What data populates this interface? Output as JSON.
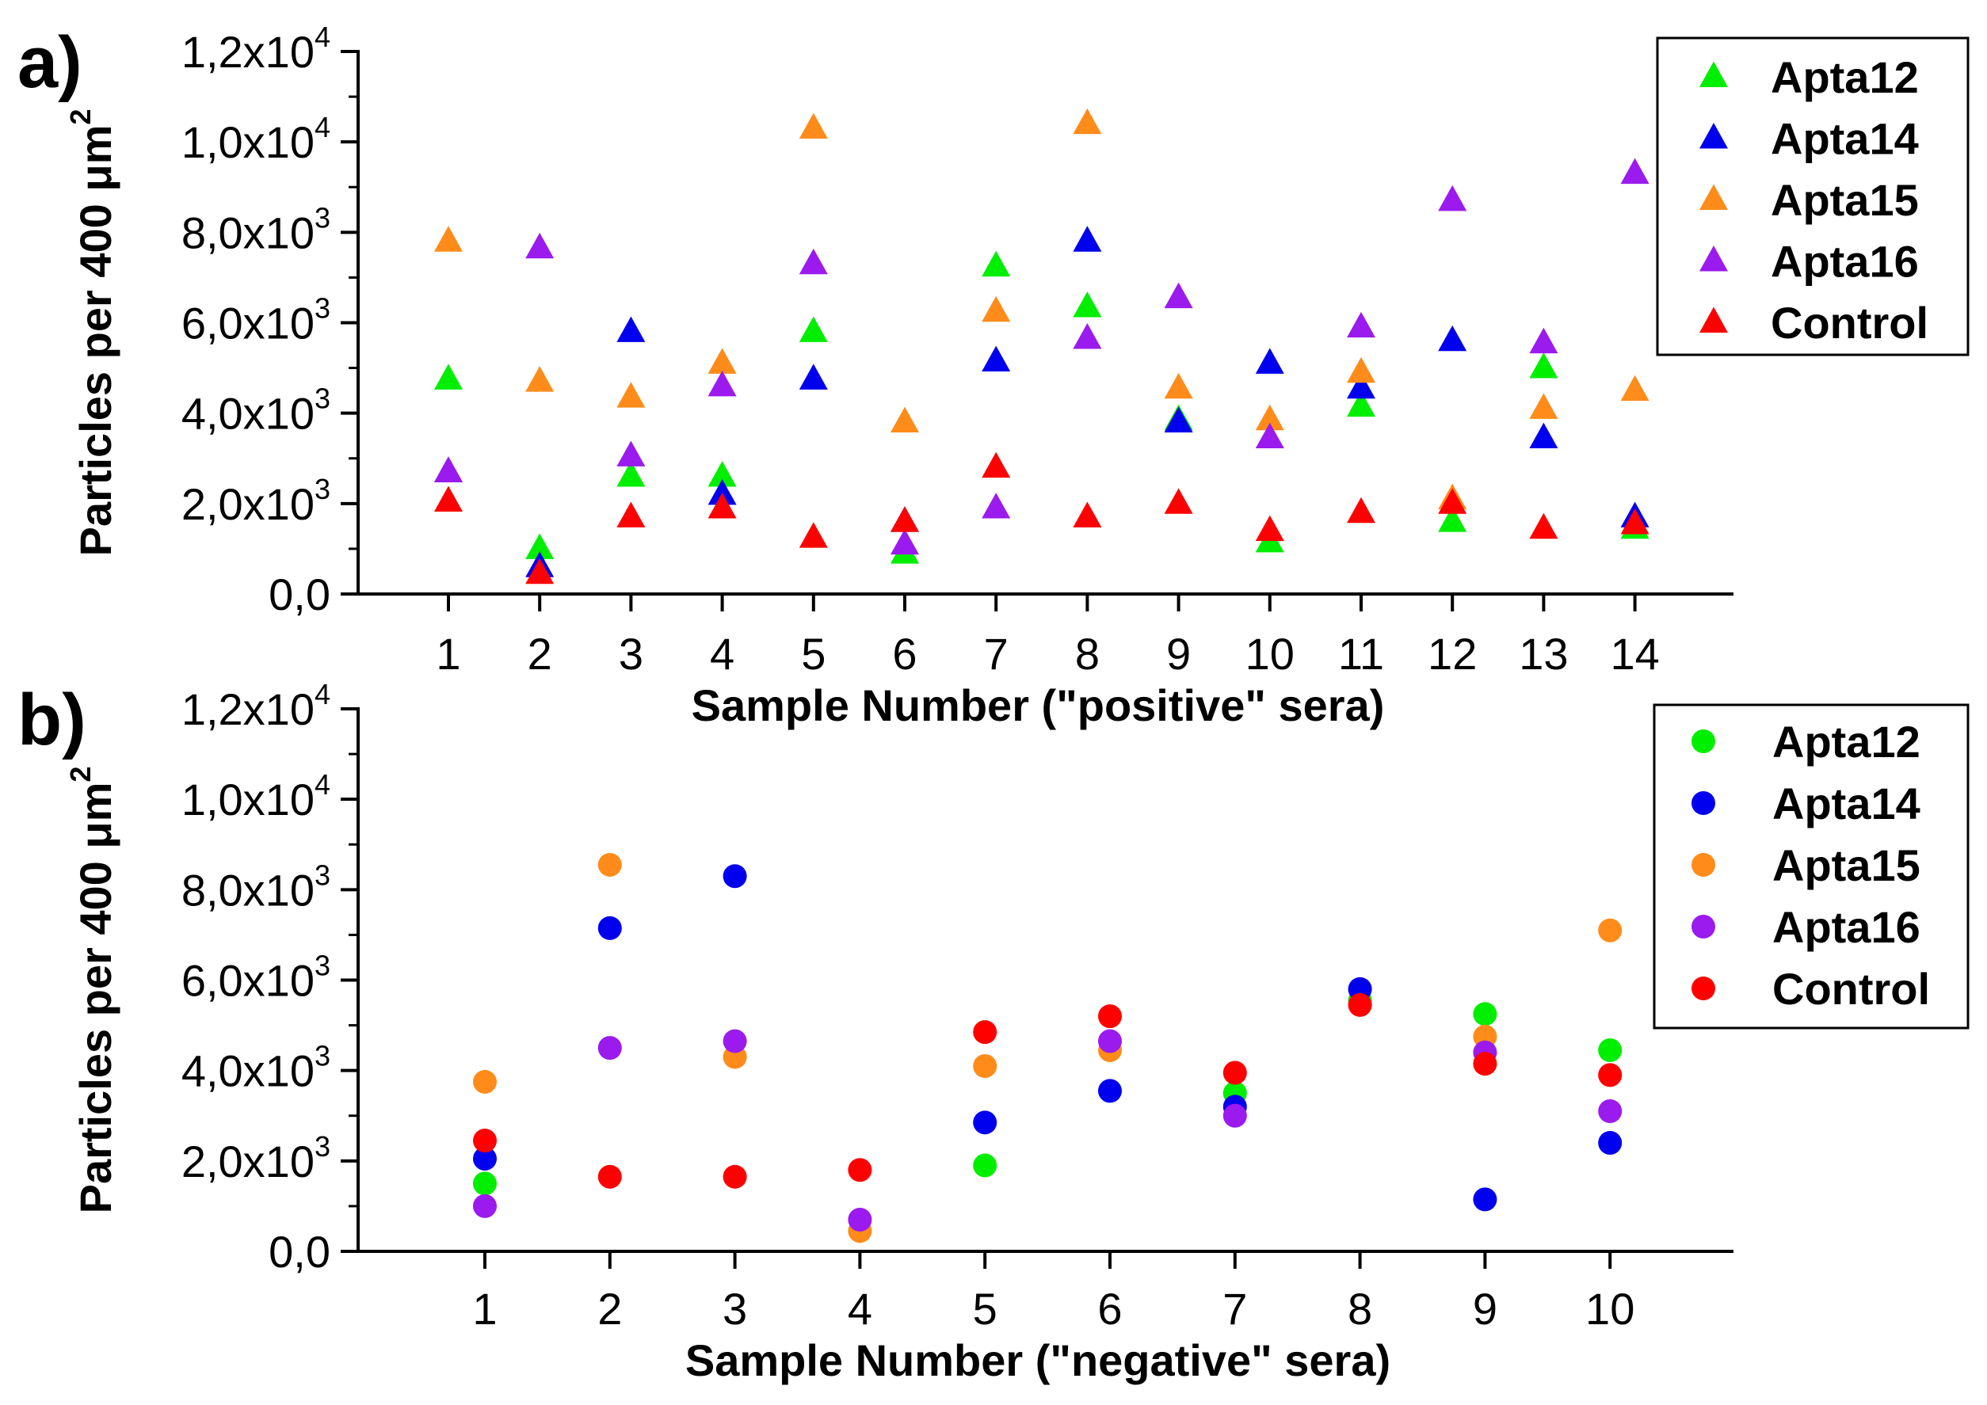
{
  "chart_data": [
    {
      "panel_label": "a)",
      "type": "scatter",
      "marker": "triangle",
      "xlabel": "Sample Number (\"positive\" sera)",
      "ylabel": "Particles per 400 μm²",
      "ylabel_parts": {
        "main": "Particles per 400 μm",
        "sup": "2"
      },
      "ylim": [
        0,
        12000
      ],
      "x": [
        1,
        2,
        3,
        4,
        5,
        6,
        7,
        8,
        9,
        10,
        11,
        12,
        13,
        14
      ],
      "x_tick_labels": [
        "1",
        "2",
        "3",
        "4",
        "5",
        "6",
        "7",
        "8",
        "9",
        "10",
        "11",
        "12",
        "13",
        "14"
      ],
      "y_ticks": [
        {
          "value": 0,
          "mantissa": "0,0",
          "exp": ""
        },
        {
          "value": 2000,
          "mantissa": "2,0x10",
          "exp": "3"
        },
        {
          "value": 4000,
          "mantissa": "4,0x10",
          "exp": "3"
        },
        {
          "value": 6000,
          "mantissa": "6,0x10",
          "exp": "3"
        },
        {
          "value": 8000,
          "mantissa": "8,0x10",
          "exp": "3"
        },
        {
          "value": 10000,
          "mantissa": "1,0x10",
          "exp": "4"
        },
        {
          "value": 12000,
          "mantissa": "1,2x10",
          "exp": "4"
        }
      ],
      "legend_position": "top-right",
      "series": [
        {
          "name": "Apta12",
          "color": "#00ee00",
          "values": [
            4750,
            1000,
            2600,
            2600,
            5800,
            900,
            7250,
            6350,
            3850,
            1150,
            4150,
            1600,
            5000,
            1450
          ]
        },
        {
          "name": "Apta14",
          "color": "#0000ee",
          "values": [
            2700,
            600,
            5800,
            2200,
            4750,
            1600,
            5150,
            7800,
            3800,
            5100,
            4550,
            5600,
            3450,
            1700
          ]
        },
        {
          "name": "Apta15",
          "color": "#ff8c1a",
          "values": [
            7800,
            4700,
            4350,
            5100,
            10300,
            3800,
            6250,
            10400,
            4550,
            3850,
            4900,
            2100,
            4100,
            4500
          ]
        },
        {
          "name": "Apta16",
          "color": "#9b1aee",
          "values": [
            2700,
            7650,
            3050,
            4600,
            7300,
            1100,
            1900,
            5650,
            6550,
            3450,
            5900,
            8700,
            5550,
            9300
          ]
        },
        {
          "name": "Control",
          "color": "#ff0000",
          "values": [
            2050,
            450,
            1700,
            1900,
            1250,
            1600,
            2800,
            1700,
            2000,
            1400,
            1800,
            2000,
            1450,
            1550
          ]
        }
      ]
    },
    {
      "panel_label": "b)",
      "type": "scatter",
      "marker": "circle",
      "xlabel": "Sample Number (\"negative\" sera)",
      "ylabel": "Particles per 400 μm²",
      "ylabel_parts": {
        "main": "Particles per 400 μm",
        "sup": "2"
      },
      "ylim": [
        0,
        12000
      ],
      "x": [
        1,
        2,
        3,
        4,
        5,
        6,
        7,
        8,
        9,
        10
      ],
      "x_tick_labels": [
        "1",
        "2",
        "3",
        "4",
        "5",
        "6",
        "7",
        "8",
        "9",
        "10"
      ],
      "y_ticks": [
        {
          "value": 0,
          "mantissa": "0,0",
          "exp": ""
        },
        {
          "value": 2000,
          "mantissa": "2,0x10",
          "exp": "3"
        },
        {
          "value": 4000,
          "mantissa": "4,0x10",
          "exp": "3"
        },
        {
          "value": 6000,
          "mantissa": "6,0x10",
          "exp": "3"
        },
        {
          "value": 8000,
          "mantissa": "8,0x10",
          "exp": "3"
        },
        {
          "value": 10000,
          "mantissa": "1,0x10",
          "exp": "4"
        },
        {
          "value": 12000,
          "mantissa": "1,2x10",
          "exp": "4"
        }
      ],
      "legend_position": "top-right",
      "series": [
        {
          "name": "Apta12",
          "color": "#00ee00",
          "values": [
            1500,
            null,
            null,
            null,
            1900,
            null,
            3500,
            5550,
            5250,
            4450
          ]
        },
        {
          "name": "Apta14",
          "color": "#0000ee",
          "values": [
            2050,
            7150,
            8300,
            null,
            2850,
            3550,
            3200,
            5800,
            1150,
            2400
          ]
        },
        {
          "name": "Apta15",
          "color": "#ff8c1a",
          "values": [
            3750,
            8550,
            4300,
            450,
            4100,
            4450,
            null,
            null,
            4750,
            7100
          ]
        },
        {
          "name": "Apta16",
          "color": "#9b1aee",
          "values": [
            1000,
            4500,
            4650,
            700,
            null,
            4650,
            3000,
            null,
            4400,
            3100
          ]
        },
        {
          "name": "Control",
          "color": "#ff0000",
          "values": [
            2450,
            1650,
            1650,
            1800,
            4850,
            5200,
            3950,
            5450,
            4150,
            3900
          ]
        }
      ]
    }
  ]
}
